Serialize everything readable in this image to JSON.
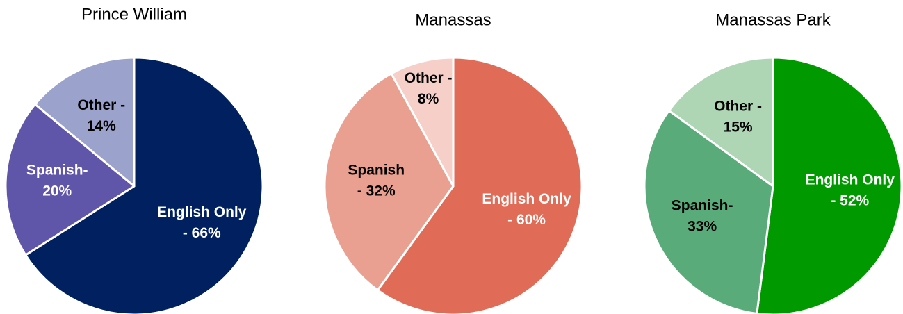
{
  "chart_data": [
    {
      "type": "pie",
      "title": "Prince William",
      "categories": [
        "English Only",
        "Spanish",
        "Other"
      ],
      "values": [
        66,
        20,
        14
      ],
      "value_labels": [
        [
          "English Only",
          "- 66%"
        ],
        [
          "Spanish-",
          "20%"
        ],
        [
          "Other -",
          "14%"
        ]
      ],
      "colors": [
        "#002060",
        "#5f55a9",
        "#9ba3cc"
      ],
      "label_colors": [
        "#ffffff",
        "#ffffff",
        "#000000"
      ]
    },
    {
      "type": "pie",
      "title": "Manassas",
      "categories": [
        "English Only",
        "Spanish",
        "Other"
      ],
      "values": [
        60,
        32,
        8
      ],
      "value_labels": [
        [
          "English Only",
          "- 60%"
        ],
        [
          "Spanish",
          "- 32%"
        ],
        [
          "Other -",
          "8%"
        ]
      ],
      "colors": [
        "#e06c58",
        "#eaa090",
        "#f6d0c8"
      ],
      "label_colors": [
        "#ffffff",
        "#000000",
        "#000000"
      ]
    },
    {
      "type": "pie",
      "title": "Manassas Park",
      "categories": [
        "English Only",
        "Spanish",
        "Other"
      ],
      "values": [
        52,
        33,
        15
      ],
      "value_labels": [
        [
          "English Only",
          "- 52%"
        ],
        [
          "Spanish-",
          "33%"
        ],
        [
          "Other -",
          "15%"
        ]
      ],
      "colors": [
        "#009a00",
        "#5aab7a",
        "#aed6b5"
      ],
      "label_colors": [
        "#ffffff",
        "#000000",
        "#000000"
      ]
    }
  ]
}
